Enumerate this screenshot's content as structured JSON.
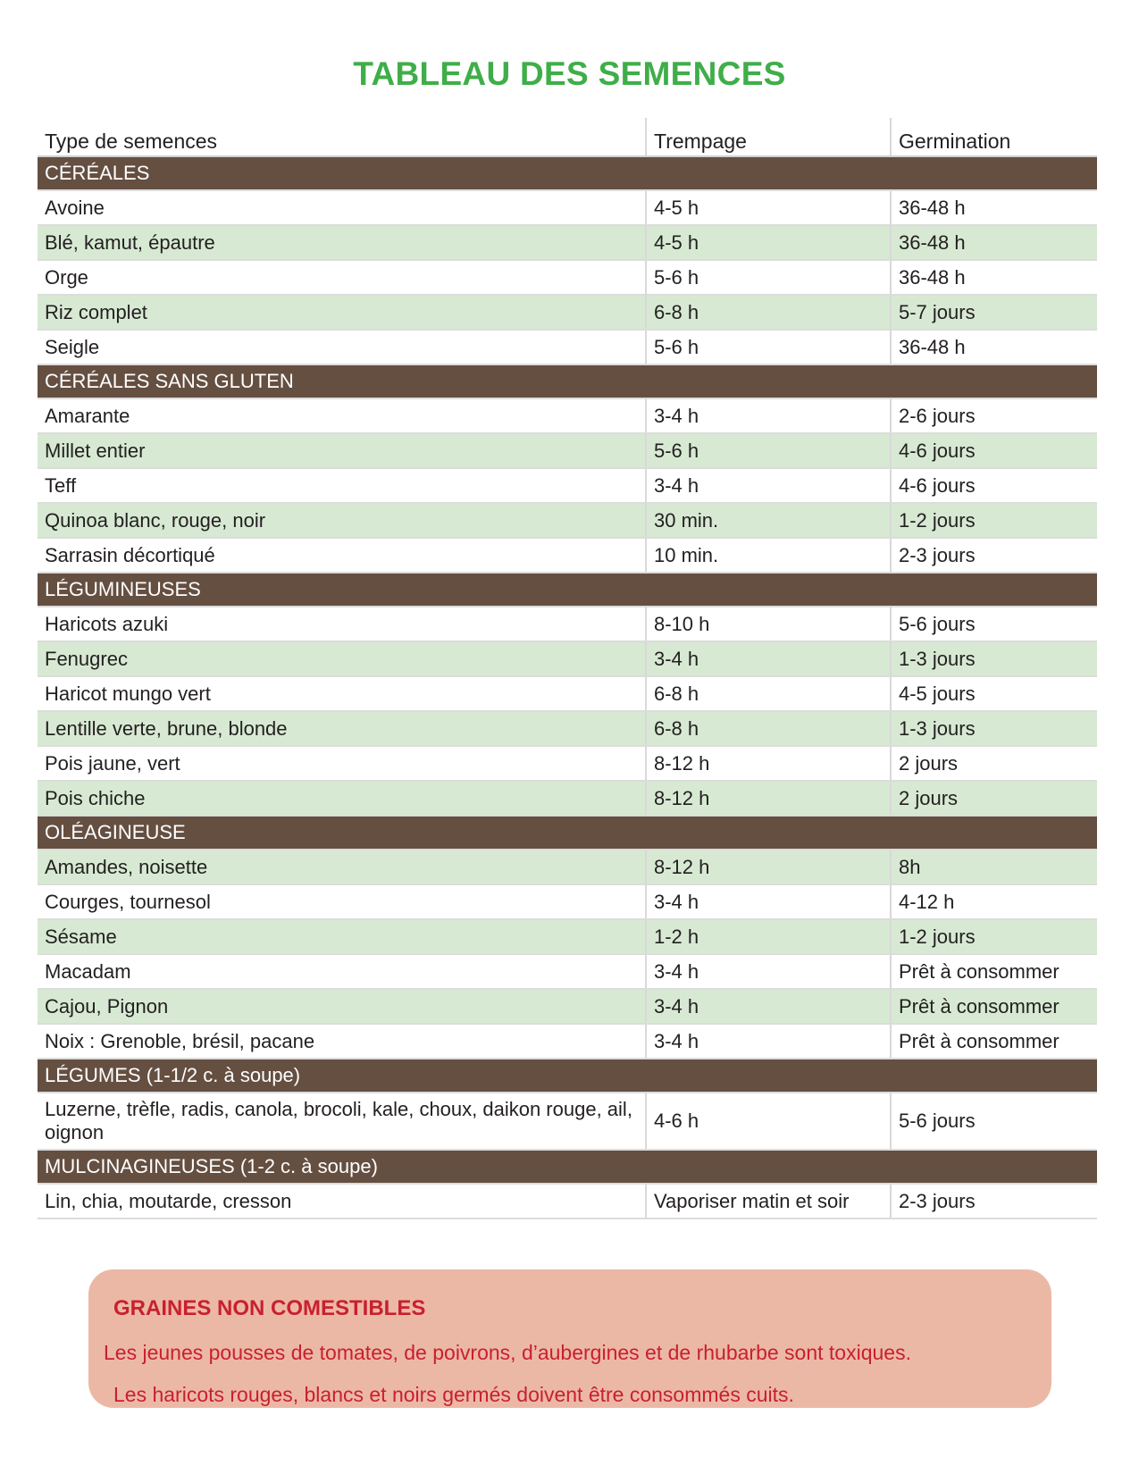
{
  "title": "TABLEAU DES SEMENCES",
  "colors": {
    "title": "#3fae49",
    "section_band": "#654f41",
    "row_shade": "#d7e9d3",
    "warning_bg": "#ecb8a6",
    "warning_text": "#c8202e"
  },
  "headers": [
    "Type de semences",
    "Trempage",
    "Germination"
  ],
  "sections": [
    {
      "label": "CÉRÉALES",
      "rows": [
        {
          "type": "Avoine",
          "trempage": "4-5 h",
          "germination": "36-48 h",
          "shade": false
        },
        {
          "type": "Blé, kamut, épautre",
          "trempage": "4-5 h",
          "germination": "36-48 h",
          "shade": true
        },
        {
          "type": "Orge",
          "trempage": "5-6 h",
          "germination": "36-48 h",
          "shade": false
        },
        {
          "type": "Riz complet",
          "trempage": "6-8 h",
          "germination": "5-7 jours",
          "shade": true
        },
        {
          "type": "Seigle",
          "trempage": "5-6 h",
          "germination": "36-48 h",
          "shade": false
        }
      ]
    },
    {
      "label": "CÉRÉALES SANS GLUTEN",
      "rows": [
        {
          "type": "Amarante",
          "trempage": "3-4 h",
          "germination": "2-6 jours",
          "shade": false
        },
        {
          "type": "Millet entier",
          "trempage": "5-6 h",
          "germination": "4-6 jours",
          "shade": true
        },
        {
          "type": "Teff",
          "trempage": "3-4 h",
          "germination": "4-6 jours",
          "shade": false
        },
        {
          "type": "Quinoa blanc, rouge, noir",
          "trempage": "30 min.",
          "germination": "1-2 jours",
          "shade": true
        },
        {
          "type": "Sarrasin décortiqué",
          "trempage": "10 min.",
          "germination": "2-3 jours",
          "shade": false
        }
      ]
    },
    {
      "label": "LÉGUMINEUSES",
      "rows": [
        {
          "type": "Haricots azuki",
          "trempage": "8-10 h",
          "germination": "5-6 jours",
          "shade": false
        },
        {
          "type": "Fenugrec",
          "trempage": "3-4 h",
          "germination": "1-3 jours",
          "shade": true
        },
        {
          "type": "Haricot mungo vert",
          "trempage": "6-8 h",
          "germination": "4-5 jours",
          "shade": false
        },
        {
          "type": "Lentille verte, brune, blonde",
          "trempage": "6-8 h",
          "germination": "1-3 jours",
          "shade": true
        },
        {
          "type": "Pois jaune, vert",
          "trempage": "8-12 h",
          "germination": "2 jours",
          "shade": false
        },
        {
          "type": "Pois chiche",
          "trempage": "8-12 h",
          "germination": "2 jours",
          "shade": true
        }
      ]
    },
    {
      "label": "OLÉAGINEUSE",
      "rows": [
        {
          "type": "Amandes, noisette",
          "trempage": "8-12 h",
          "germination": "8h",
          "shade": true
        },
        {
          "type": "Courges, tournesol",
          "trempage": "3-4 h",
          "germination": "4-12 h",
          "shade": false
        },
        {
          "type": "Sésame",
          "trempage": "1-2 h",
          "germination": "1-2 jours",
          "shade": true
        },
        {
          "type": "Macadam",
          "trempage": "3-4 h",
          "germination": "Prêt à consommer",
          "shade": false
        },
        {
          "type": "Cajou, Pignon",
          "trempage": "3-4 h",
          "germination": "Prêt à consommer",
          "shade": true
        },
        {
          "type": "Noix : Grenoble, brésil, pacane",
          "trempage": "3-4 h",
          "germination": "Prêt à consommer",
          "shade": false
        }
      ]
    },
    {
      "label": "LÉGUMES (1-1/2 c. à soupe)",
      "rows": [
        {
          "type": "Luzerne, trèfle, radis, canola, brocoli, kale, choux, daikon rouge, ail, oignon",
          "trempage": "4-6 h",
          "germination": "5-6 jours",
          "shade": false,
          "tall": true
        }
      ]
    },
    {
      "label": "MULCINAGINEUSES (1-2 c. à soupe)",
      "rows": [
        {
          "type": "Lin, chia, moutarde, cresson",
          "trempage": "Vaporiser matin et soir",
          "germination": "2-3 jours",
          "shade": false
        }
      ]
    }
  ],
  "warning": {
    "title": "GRAINES NON COMESTIBLES",
    "line1": "Les jeunes pousses de tomates, de poivrons, d’aubergines et de rhubarbe sont toxiques.",
    "line2": "Les haricots rouges, blancs et noirs germés doivent être consommés cuits."
  }
}
